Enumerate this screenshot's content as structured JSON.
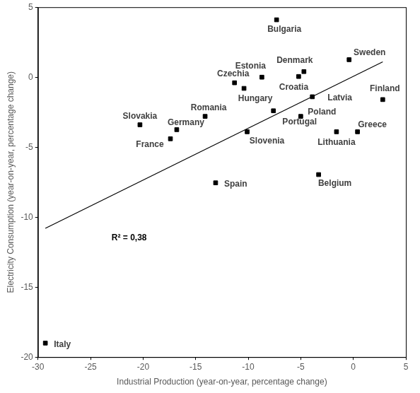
{
  "chart_data": {
    "type": "scatter",
    "x_label": "Industrial Production (year-on-year, percentage change)",
    "y_label": "Electricity Consumption (year-on-year, percentage change)",
    "labels": [
      "Bulgaria",
      "Sweden",
      "Denmark",
      "Estonia",
      "Croatia",
      "Czechia",
      "Hungary",
      "Latvia",
      "Finland",
      "Poland",
      "Portugal",
      "Romania",
      "Slovakia",
      "Germany",
      "France",
      "Slovenia",
      "Lithuania",
      "Greece",
      "Spain",
      "Belgium",
      "Italy"
    ],
    "x": [
      -7.3,
      -0.4,
      -4.7,
      -8.7,
      -5.2,
      -11.3,
      -10.4,
      -3.9,
      2.8,
      -5.0,
      -7.6,
      -14.1,
      -20.3,
      -16.8,
      -17.4,
      -10.1,
      -1.6,
      0.4,
      -13.1,
      -3.3,
      -29.3
    ],
    "values": [
      4.1,
      1.25,
      0.4,
      0.0,
      0.05,
      -0.4,
      -0.8,
      -1.4,
      -1.6,
      -2.8,
      -2.4,
      -2.8,
      -3.4,
      -3.75,
      -4.4,
      -3.9,
      -3.9,
      -3.9,
      -7.55,
      -6.96,
      -19.0
    ],
    "color": "#000000",
    "marker": "square",
    "trendline": {
      "x": [
        -29.3,
        2.8
      ],
      "values": [
        -10.8,
        1.1
      ],
      "color": "#000000",
      "line_style": "solid"
    },
    "annotation": "R² = 0,38",
    "xlim": [
      -30,
      5
    ],
    "xticks": [
      -30,
      -25,
      -20,
      -15,
      -10,
      -5,
      0,
      5
    ],
    "ylim": [
      -20,
      5
    ],
    "yticks": [
      -20,
      -15,
      -10,
      -5,
      0,
      5
    ],
    "grid": false
  }
}
